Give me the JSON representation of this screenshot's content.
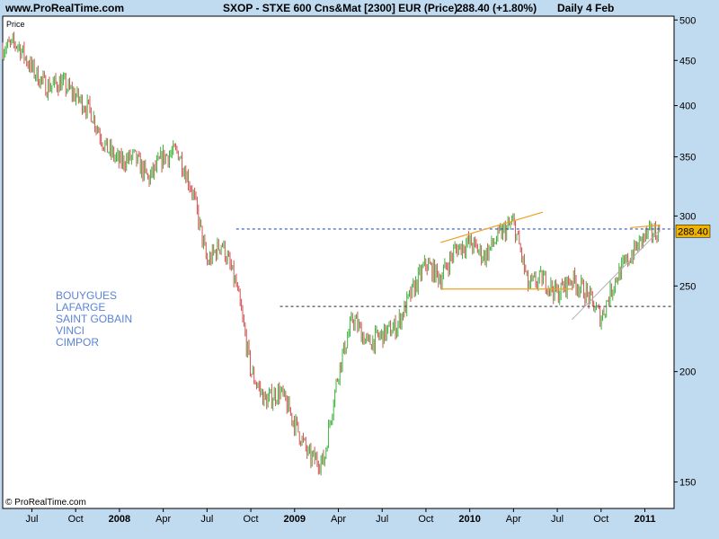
{
  "header": {
    "site": "www.ProRealTime.com",
    "instrument": "SXOP - STXE 600 Cns&Mat [2300] EUR (Price)",
    "last": "288.40 (+1.80%)",
    "period": "Daily  4 Feb"
  },
  "colors": {
    "background": "#c0daf0",
    "plot_background": "#ffffff",
    "up_bar": "#3cb43c",
    "down_bar": "#d25050",
    "trendline": "#f0a020",
    "support_line": "#505050",
    "resistance_line": "#3050c0",
    "price_tag": "#f0b400"
  },
  "notes": [
    "BOUYGUES",
    "LAFARGE",
    "SAINT GOBAIN",
    "VINCI",
    "CIMPOR"
  ],
  "chart_data": {
    "type": "candlestick",
    "panel_label": "Price",
    "watermark": "© ProRealTime.com",
    "scale": "log",
    "ylim": [
      140,
      505
    ],
    "y_ticks": [
      150,
      200,
      250,
      300,
      350,
      400,
      450,
      500
    ],
    "x_ticks": [
      "Jul",
      "Oct",
      "2008",
      "Apr",
      "Jul",
      "Oct",
      "2009",
      "Apr",
      "Jul",
      "Oct",
      "2010",
      "Apr",
      "Jul",
      "Oct",
      "2011"
    ],
    "x_tick_bold": [
      false,
      false,
      true,
      false,
      false,
      false,
      true,
      false,
      false,
      false,
      true,
      false,
      false,
      false,
      true
    ],
    "x_dates": [
      "2007-07",
      "2007-10",
      "2008-01",
      "2008-04",
      "2008-07",
      "2008-10",
      "2009-01",
      "2009-04",
      "2009-07",
      "2009-10",
      "2010-01",
      "2010-04",
      "2010-07",
      "2010-10",
      "2011-01"
    ],
    "last_price": "288.40",
    "series": {
      "dates": [
        "2007-05",
        "2007-06",
        "2007-07",
        "2007-08",
        "2007-09",
        "2007-10",
        "2007-11",
        "2007-12",
        "2008-01",
        "2008-02",
        "2008-03",
        "2008-04",
        "2008-05",
        "2008-06",
        "2008-07",
        "2008-08",
        "2008-09",
        "2008-10",
        "2008-11",
        "2008-12",
        "2009-01",
        "2009-02",
        "2009-03",
        "2009-04",
        "2009-05",
        "2009-06",
        "2009-07",
        "2009-08",
        "2009-09",
        "2009-10",
        "2009-11",
        "2009-12",
        "2010-01",
        "2010-02",
        "2010-03",
        "2010-04",
        "2010-05",
        "2010-06",
        "2010-07",
        "2010-08",
        "2010-09",
        "2010-10",
        "2010-11",
        "2010-12",
        "2011-01",
        "2011-02"
      ],
      "close": [
        465,
        470,
        440,
        420,
        425,
        410,
        395,
        360,
        345,
        350,
        330,
        350,
        355,
        320,
        265,
        280,
        250,
        200,
        185,
        190,
        175,
        160,
        158,
        200,
        230,
        215,
        220,
        225,
        245,
        265,
        255,
        275,
        280,
        270,
        285,
        295,
        250,
        255,
        245,
        255,
        245,
        230,
        255,
        270,
        285,
        288.4
      ]
    },
    "lines": [
      {
        "kind": "resistance",
        "value": 290,
        "from": "2008-09",
        "to": "2011-02"
      },
      {
        "kind": "support",
        "value": 237,
        "from": "2008-12",
        "to": "2011-02"
      },
      {
        "kind": "support",
        "value": 248,
        "from": "2009-11",
        "to": "2010-07"
      }
    ]
  }
}
